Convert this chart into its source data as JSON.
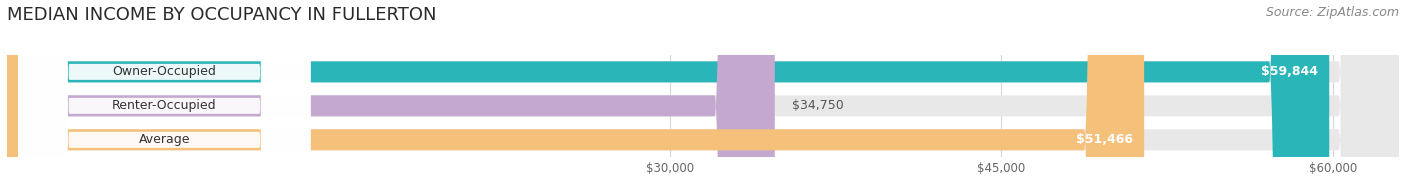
{
  "title": "MEDIAN INCOME BY OCCUPANCY IN FULLERTON",
  "source": "Source: ZipAtlas.com",
  "categories": [
    "Owner-Occupied",
    "Renter-Occupied",
    "Average"
  ],
  "values": [
    59844,
    34750,
    51466
  ],
  "bar_colors": [
    "#2ab5b8",
    "#c4a8d0",
    "#f5c07a"
  ],
  "bar_bg_color": "#e8e8e8",
  "label_values": [
    "$59,844",
    "$34,750",
    "$51,466"
  ],
  "value_inside": [
    true,
    false,
    true
  ],
  "xmin": 0,
  "xmax": 63000,
  "xticks": [
    30000,
    45000,
    60000
  ],
  "xtick_labels": [
    "$30,000",
    "$45,000",
    "$60,000"
  ],
  "title_fontsize": 13,
  "source_fontsize": 9,
  "bar_height": 0.62,
  "background_color": "#ffffff",
  "grid_color": "#d8d8d8",
  "label_bg_color": "#f5f5f5"
}
